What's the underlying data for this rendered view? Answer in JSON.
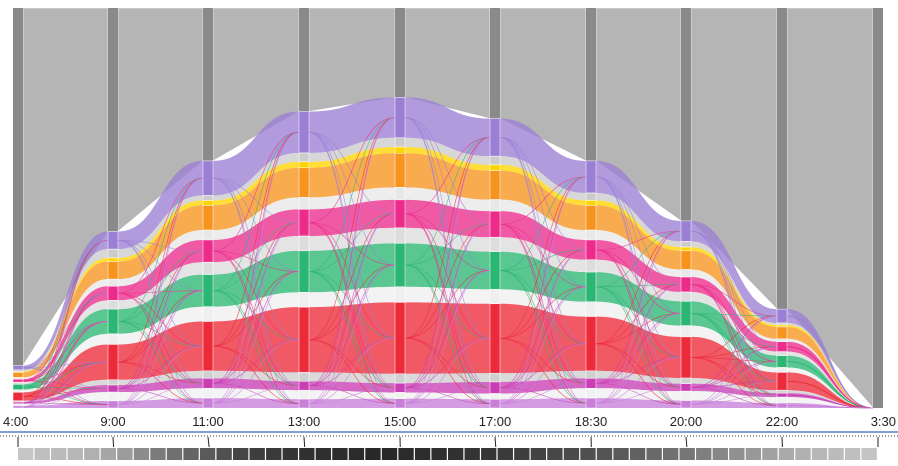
{
  "chart_data": {
    "type": "parallel-sets",
    "time_labels": [
      "4:00",
      "9:00",
      "11:00",
      "13:00",
      "15:00",
      "17:00",
      "18:30",
      "20:00",
      "22:00",
      "3:30"
    ],
    "activity_level": [
      0.12,
      0.5,
      0.7,
      0.84,
      0.88,
      0.82,
      0.7,
      0.53,
      0.28,
      0.0
    ],
    "categories": [
      {
        "color": "#9b7fd4",
        "shares": [
          0.1,
          0.1,
          0.14,
          0.14,
          0.13,
          0.13,
          0.13,
          0.11,
          0.14,
          0.0
        ]
      },
      {
        "color": "#cccccc",
        "shares": [
          0.04,
          0.05,
          0.02,
          0.03,
          0.03,
          0.03,
          0.03,
          0.03,
          0.02,
          0.0
        ]
      },
      {
        "color": "#ffd500",
        "shares": [
          0.02,
          0.02,
          0.02,
          0.02,
          0.02,
          0.02,
          0.02,
          0.02,
          0.02,
          0.0
        ]
      },
      {
        "color": "#f7941d",
        "shares": [
          0.12,
          0.1,
          0.1,
          0.1,
          0.11,
          0.1,
          0.1,
          0.1,
          0.12,
          0.0
        ]
      },
      {
        "color": "#e8e8e8",
        "shares": [
          0.04,
          0.04,
          0.04,
          0.04,
          0.04,
          0.04,
          0.04,
          0.04,
          0.03,
          0.0
        ]
      },
      {
        "color": "#ec2b8c",
        "shares": [
          0.07,
          0.08,
          0.09,
          0.09,
          0.09,
          0.09,
          0.08,
          0.08,
          0.1,
          0.0
        ]
      },
      {
        "color": "#dddddd",
        "shares": [
          0.05,
          0.05,
          0.05,
          0.05,
          0.05,
          0.05,
          0.05,
          0.05,
          0.04,
          0.0
        ]
      },
      {
        "color": "#2bb673",
        "shares": [
          0.13,
          0.14,
          0.13,
          0.14,
          0.14,
          0.13,
          0.12,
          0.13,
          0.12,
          0.0
        ]
      },
      {
        "color": "#efefef",
        "shares": [
          0.06,
          0.06,
          0.06,
          0.05,
          0.05,
          0.05,
          0.06,
          0.06,
          0.05,
          0.0
        ]
      },
      {
        "color": "#ed2a3a",
        "shares": [
          0.2,
          0.2,
          0.2,
          0.22,
          0.23,
          0.24,
          0.22,
          0.22,
          0.18,
          0.0
        ]
      },
      {
        "color": "#d0d0d0",
        "shares": [
          0.03,
          0.03,
          0.03,
          0.03,
          0.03,
          0.03,
          0.03,
          0.03,
          0.03,
          0.0
        ]
      },
      {
        "color": "#c93db5",
        "shares": [
          0.04,
          0.04,
          0.04,
          0.03,
          0.03,
          0.04,
          0.04,
          0.04,
          0.04,
          0.0
        ]
      },
      {
        "color": "#f1f1f1",
        "shares": [
          0.05,
          0.05,
          0.04,
          0.03,
          0.02,
          0.02,
          0.04,
          0.05,
          0.06,
          0.0
        ]
      },
      {
        "color": "#c77fd8",
        "shares": [
          0.05,
          0.04,
          0.04,
          0.03,
          0.03,
          0.03,
          0.04,
          0.04,
          0.05,
          0.0
        ]
      }
    ],
    "overview_strip_levels": [
      0.15,
      0.18,
      0.2,
      0.22,
      0.25,
      0.3,
      0.35,
      0.42,
      0.5,
      0.55,
      0.6,
      0.65,
      0.7,
      0.75,
      0.78,
      0.8,
      0.82,
      0.84,
      0.85,
      0.86,
      0.87,
      0.88,
      0.88,
      0.87,
      0.86,
      0.85,
      0.84,
      0.83,
      0.82,
      0.8,
      0.78,
      0.76,
      0.74,
      0.72,
      0.7,
      0.68,
      0.65,
      0.62,
      0.58,
      0.55,
      0.52,
      0.48,
      0.44,
      0.4,
      0.36,
      0.32,
      0.28,
      0.25,
      0.22,
      0.2,
      0.18,
      0.16
    ]
  },
  "colors": {
    "axis_bar": "#8a8a8a",
    "inactive_fill": "#b5b5b5",
    "background": "#ffffff",
    "axis_line": "#5b7fc0"
  }
}
